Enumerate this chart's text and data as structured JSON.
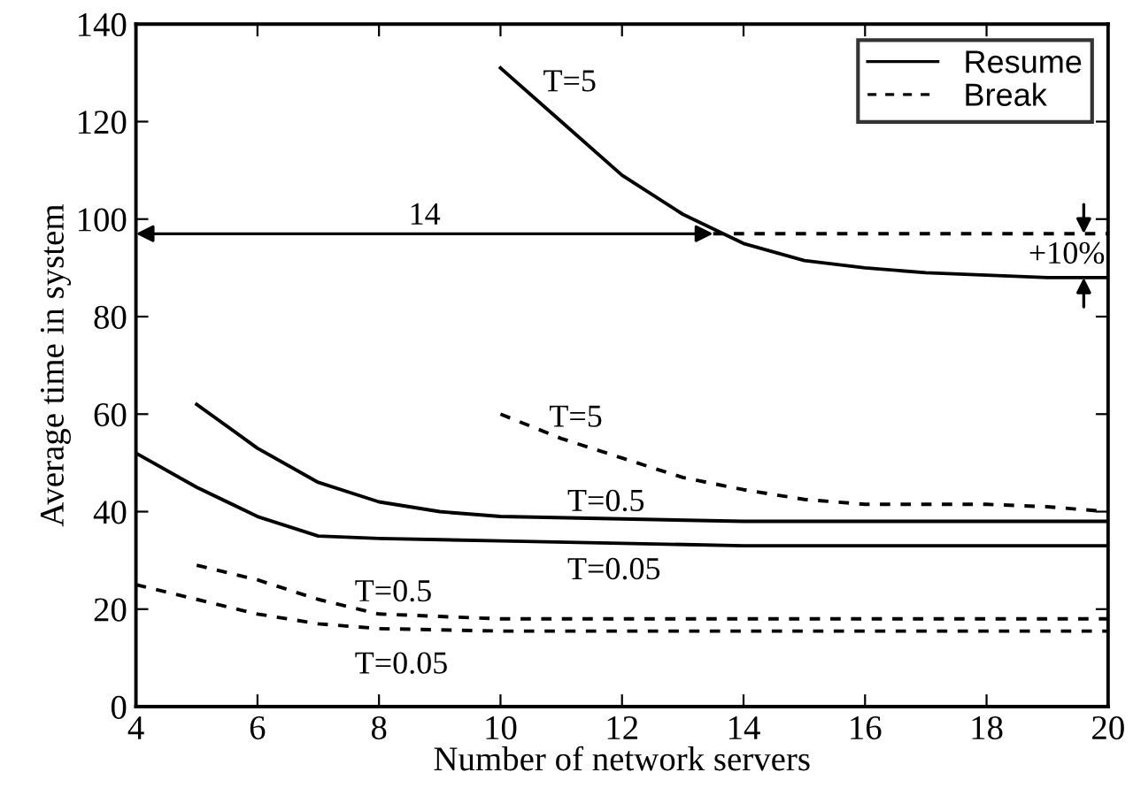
{
  "chart_data": {
    "type": "line",
    "xlabel": "Number of network servers",
    "ylabel": "Average time in system",
    "xlim": [
      4,
      20
    ],
    "ylim": [
      0,
      140
    ],
    "xticks": [
      4,
      6,
      8,
      10,
      12,
      14,
      16,
      18,
      20
    ],
    "yticks": [
      0,
      20,
      40,
      60,
      80,
      100,
      120,
      140
    ],
    "grid": false,
    "legend": "top right",
    "marker": "none",
    "series": [
      {
        "name": "T=5",
        "color": "#000000",
        "line_style": "solid",
        "x": [
          10,
          11,
          12,
          13,
          14,
          15,
          16,
          17,
          18,
          19,
          20
        ],
        "values": [
          131,
          120,
          109,
          101,
          95,
          91.5,
          90,
          89,
          88.5,
          88,
          88
        ]
      },
      {
        "name": "T=5",
        "color": "#000000",
        "line_style": "dashed",
        "x": [
          10,
          11,
          12,
          13,
          14,
          15,
          16,
          17,
          18,
          19,
          20
        ],
        "values": [
          60,
          55,
          51,
          47,
          44.5,
          42.5,
          41.5,
          41.5,
          41.5,
          41,
          40
        ]
      },
      {
        "name": "T=0.5",
        "color": "#000000",
        "line_style": "solid",
        "x": [
          5,
          6,
          7,
          8,
          9,
          10,
          12,
          14,
          16,
          18,
          20
        ],
        "values": [
          62,
          53,
          46,
          42,
          40,
          39,
          38.5,
          38,
          38,
          38,
          38
        ]
      },
      {
        "name": "T=0.05",
        "color": "#000000",
        "line_style": "solid",
        "x": [
          4,
          5,
          6,
          7,
          8,
          10,
          12,
          14,
          16,
          18,
          20
        ],
        "values": [
          52,
          45,
          39,
          35,
          34.5,
          34,
          33.5,
          33,
          33,
          33,
          33
        ]
      },
      {
        "name": "T=0.5",
        "color": "#000000",
        "line_style": "dashed",
        "x": [
          5,
          6,
          7,
          8,
          9,
          10,
          12,
          14,
          16,
          18,
          20
        ],
        "values": [
          29,
          26,
          22,
          19,
          18.5,
          18,
          18,
          18,
          18,
          18,
          18
        ]
      },
      {
        "name": "T=0.05",
        "color": "#000000",
        "line_style": "dashed",
        "x": [
          4,
          5,
          6,
          7,
          8,
          10,
          12,
          14,
          16,
          18,
          20
        ],
        "values": [
          25,
          22,
          19,
          17,
          16,
          15.5,
          15.5,
          15.5,
          15.5,
          15.5,
          15.5
        ]
      },
      {
        "color": "#000000",
        "line_style": "dashed",
        "x": [
          13.5,
          20
        ],
        "values": [
          97,
          97
        ]
      }
    ],
    "annotations": [
      "14",
      "+10%",
      "Resume",
      "Break"
    ]
  }
}
